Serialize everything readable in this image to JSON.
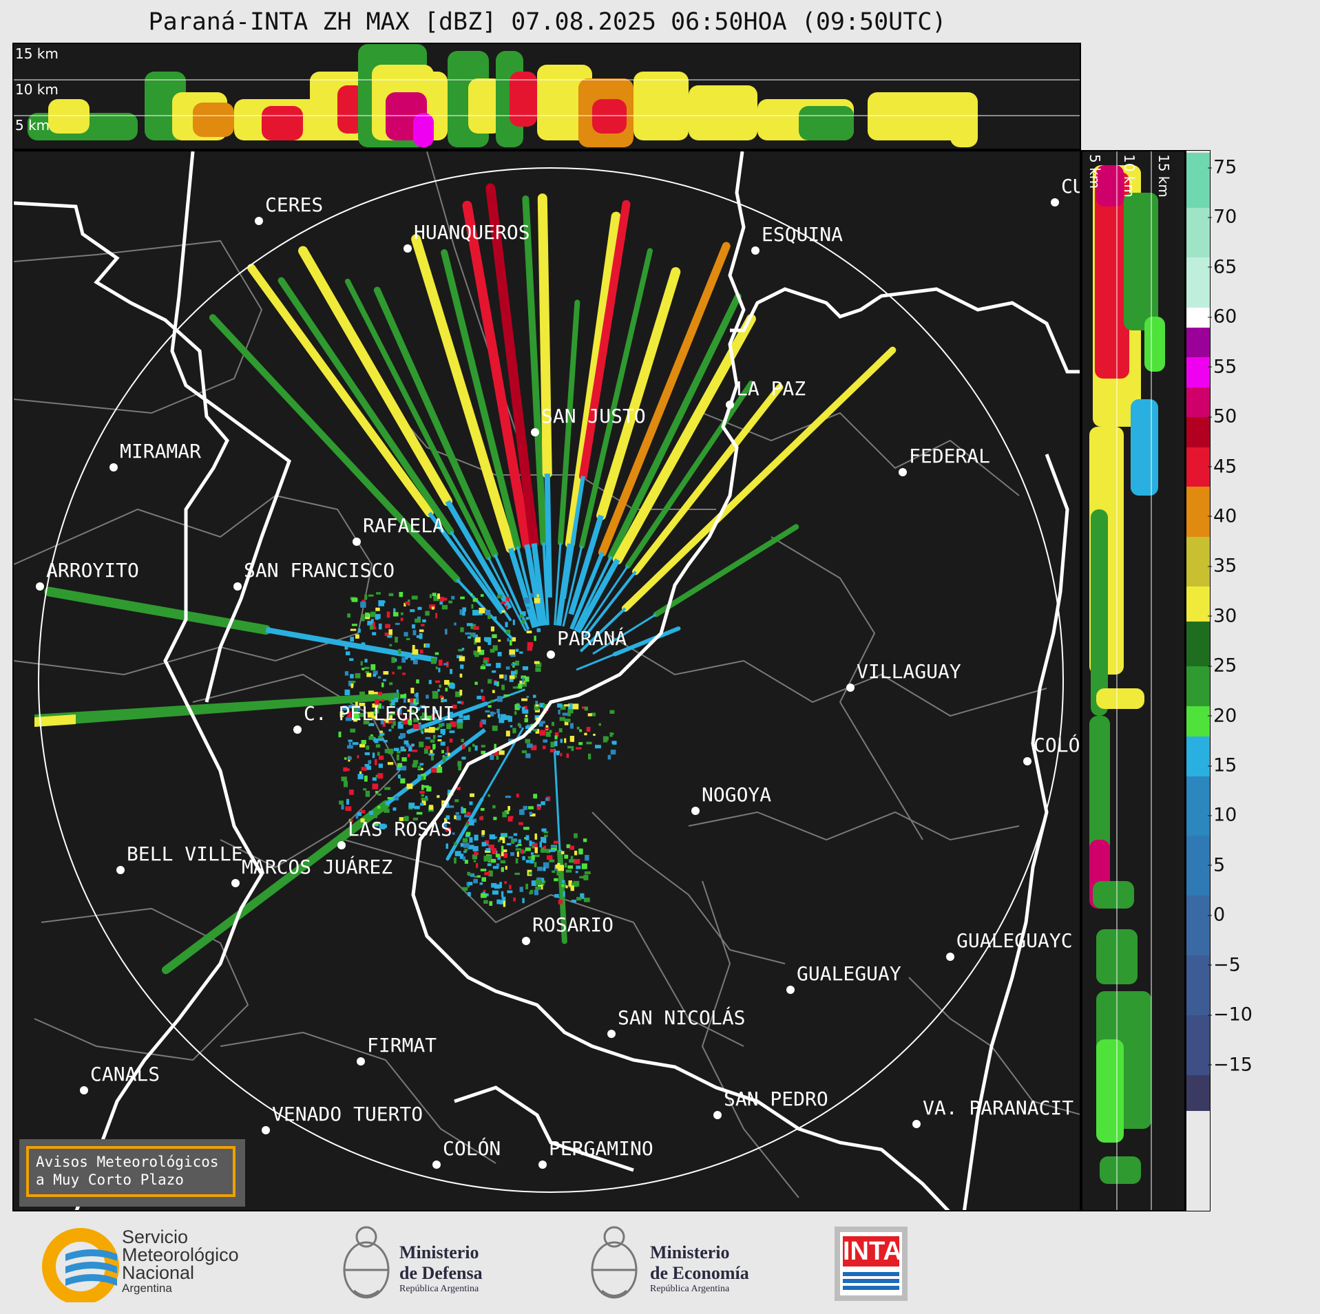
{
  "title": "Paraná-INTA ZH MAX [dBZ] 07.08.2025 06:50HOA (09:50UTC)",
  "top_panel": {
    "height_labels": [
      "15 km",
      "10 km",
      "5 km"
    ]
  },
  "side_panel": {
    "height_labels": [
      "5 km",
      "10 km",
      "15 km"
    ]
  },
  "colorbar": {
    "unit": "dBZ",
    "ticks": [
      "75",
      "70",
      "65",
      "60",
      "55",
      "50",
      "45",
      "40",
      "35",
      "30",
      "25",
      "20",
      "15",
      "10",
      "5",
      "0",
      "−5",
      "−10",
      "−15"
    ],
    "colors": {
      "c_m20": "#3b3a63",
      "c_m10": "#3e4f86",
      "c_0": "#3a6aa3",
      "c_10": "#2b87bd",
      "c_18": "#29b0e0",
      "c_20": "#4ee23a",
      "c_25": "#2f9a2f",
      "c_30": "#f0ea3a",
      "c_40": "#e08a10",
      "c_45": "#e51530",
      "c_50": "#b40020",
      "c_53": "#d0006a",
      "c_56": "#f000f0",
      "c_58": "#9b0098",
      "c_60": "#ffffff",
      "c_65": "#bfefdc",
      "c_75": "#70d8b0"
    }
  },
  "cities": [
    {
      "name": "CERES"
    },
    {
      "name": "HUANQUEROS"
    },
    {
      "name": "ESQUINA"
    },
    {
      "name": "CU"
    },
    {
      "name": "SAN JUSTO"
    },
    {
      "name": "LA PAZ"
    },
    {
      "name": "MIRAMAR"
    },
    {
      "name": "FEDERAL"
    },
    {
      "name": "RAFAELA"
    },
    {
      "name": "ARROYITO"
    },
    {
      "name": "SAN FRANCISCO"
    },
    {
      "name": "PARANÁ"
    },
    {
      "name": "VILLAGUAY"
    },
    {
      "name": "C. PELLEGRINI"
    },
    {
      "name": "COLÓ"
    },
    {
      "name": "NOGOYA"
    },
    {
      "name": "LAS ROSAS"
    },
    {
      "name": "BELL VILLE"
    },
    {
      "name": "MARCOS JUÁREZ"
    },
    {
      "name": "ROSARIO"
    },
    {
      "name": "GUALEGUAYC"
    },
    {
      "name": "GUALEGUAY"
    },
    {
      "name": "SAN NICOLÁS"
    },
    {
      "name": "FIRMAT"
    },
    {
      "name": "CANALS"
    },
    {
      "name": "SAN PEDRO"
    },
    {
      "name": "VENADO TUERTO"
    },
    {
      "name": "VA. PARANACIT"
    },
    {
      "name": "COLÓN"
    },
    {
      "name": "PERGAMINO"
    }
  ],
  "aviso": {
    "line1": "Avisos Meteorológicos",
    "line2": "a Muy Corto Plazo"
  },
  "logos": {
    "smn": {
      "line1": "Servicio",
      "line2": "Meteorológico",
      "line3": "Nacional",
      "line4": "Argentina"
    },
    "defensa": {
      "line1": "Ministerio",
      "line2": "de Defensa",
      "line3": "República Argentina"
    },
    "economia": {
      "line1": "Ministerio",
      "line2": "de Economía",
      "line3": "República Argentina"
    },
    "inta": {
      "text": "INTA"
    }
  }
}
